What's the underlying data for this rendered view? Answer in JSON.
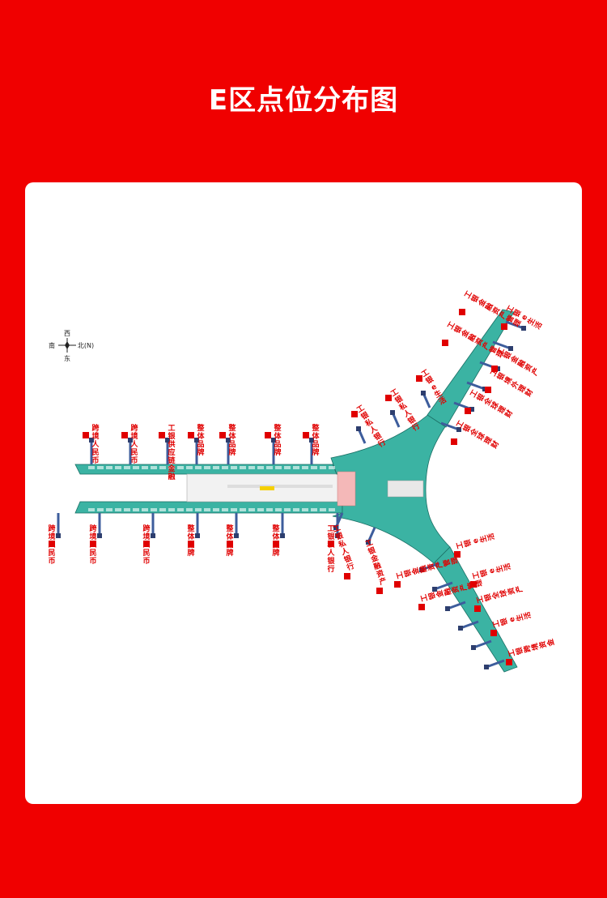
{
  "title": "E区点位分布图",
  "compass": {
    "west": "西",
    "south": "南",
    "north": "北(N)",
    "east": "东"
  },
  "colors": {
    "background": "#f00000",
    "concourse": "#3bb3a3",
    "label": "#e00000",
    "jetbridge": "#3d5d9c"
  },
  "labels": {
    "top_left": [
      "跨境人民币",
      "跨境人民币",
      "工银供应链金融",
      "整体品牌",
      "整体品牌",
      "整体品牌",
      "整体品牌"
    ],
    "bottom_left": [
      "跨境人民币",
      "跨境人民币",
      "跨境人民币",
      "整体品牌",
      "整体品牌",
      "整体品牌",
      "工银私人银行"
    ],
    "northeast_inner": [
      "工银私人银行",
      "工银私人银行",
      "工银e生活"
    ],
    "northeast_outer": [
      "工银金融资产管理",
      "工银金融资产管理",
      "工银e生活",
      "工银金融资产",
      "工银境外理财",
      "工银全球理财",
      "工银全球理财"
    ],
    "southeast_inner": [
      "工银私人银行",
      "工银金融资产"
    ],
    "southeast_outer": [
      "工银e生活",
      "工银e生活",
      "工银金融资产管理",
      "工银金融资产管理",
      "工银全球资产",
      "工银e生活",
      "工银跨境资金"
    ]
  }
}
